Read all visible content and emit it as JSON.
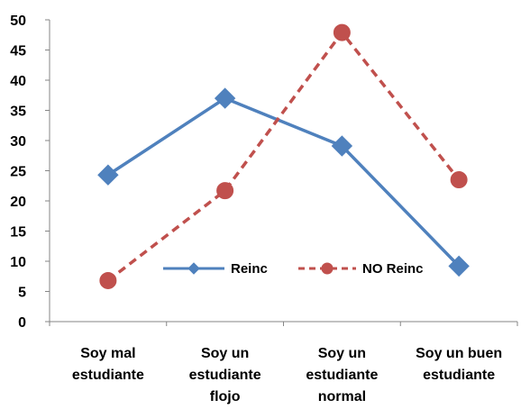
{
  "chart_data": {
    "type": "line",
    "categories": [
      [
        "Soy mal",
        "estudiante"
      ],
      [
        "Soy un",
        "estudiante",
        "flojo"
      ],
      [
        "Soy un",
        "estudiante",
        "normal"
      ],
      [
        "Soy un buen",
        "estudiante"
      ]
    ],
    "series": [
      {
        "name": "Reinc",
        "values": [
          24.3,
          37.0,
          29.1,
          9.2
        ],
        "color": "#4f81bd",
        "marker": "diamond",
        "dash": "solid"
      },
      {
        "name": "NO Reinc",
        "values": [
          6.8,
          21.7,
          47.9,
          23.5
        ],
        "color": "#c0504d",
        "marker": "circle",
        "dash": "dashed"
      }
    ],
    "ylim": [
      0,
      50
    ],
    "yticks": [
      0,
      5,
      10,
      15,
      20,
      25,
      30,
      35,
      40,
      45,
      50
    ],
    "grid": false,
    "legend": "inside-bottom-center"
  }
}
